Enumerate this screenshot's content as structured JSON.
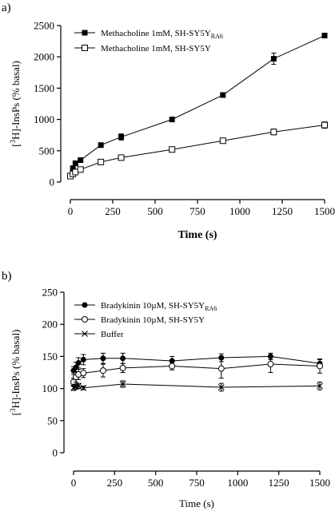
{
  "chart_data": [
    {
      "panel_label": "a)",
      "type": "line",
      "xlabel": "Time (s)",
      "ylabel_parts": {
        "pre": "[",
        "sup": "3",
        "post": "H]-InsPs (% basal)"
      },
      "xlim": [
        0,
        1500
      ],
      "ylim": [
        0,
        2500
      ],
      "xticks": [
        0,
        250,
        500,
        750,
        1000,
        1250,
        1500
      ],
      "yticks": [
        0,
        500,
        1000,
        1500,
        2000,
        2500
      ],
      "legend_position": "top-left",
      "series": [
        {
          "name": "Methacholine 1mM, SH-SY5Y",
          "name_sub": "RA6",
          "marker": "filled-square",
          "x": [
            0,
            15,
            30,
            60,
            180,
            300,
            600,
            900,
            1200,
            1500
          ],
          "y": [
            100,
            220,
            300,
            350,
            590,
            720,
            1000,
            1390,
            1970,
            2340
          ],
          "err": [
            15,
            25,
            25,
            25,
            30,
            50,
            30,
            30,
            90,
            30
          ]
        },
        {
          "name": "Methacholine 1mM, SH-SY5Y",
          "name_sub": "",
          "marker": "open-square",
          "x": [
            0,
            15,
            30,
            60,
            180,
            300,
            600,
            900,
            1200,
            1500
          ],
          "y": [
            95,
            130,
            160,
            200,
            320,
            390,
            520,
            660,
            800,
            910
          ],
          "err": [
            10,
            15,
            15,
            15,
            20,
            20,
            20,
            25,
            45,
            50
          ]
        }
      ]
    },
    {
      "panel_label": "b)",
      "type": "line",
      "xlabel": "Time (s)",
      "ylabel_parts": {
        "pre": "[",
        "sup": "3",
        "post": "H]-InsPs (% basal)"
      },
      "xlim": [
        0,
        1500
      ],
      "ylim": [
        0,
        250
      ],
      "xticks": [
        0,
        250,
        500,
        750,
        1000,
        1250,
        1500
      ],
      "yticks": [
        0,
        50,
        100,
        150,
        200,
        250
      ],
      "legend_position": "top-left",
      "series": [
        {
          "name": "Bradykinin 10µM, SH-SY5Y",
          "name_sub": "RA6",
          "marker": "filled-circle",
          "x": [
            0,
            15,
            30,
            60,
            180,
            300,
            600,
            900,
            1200,
            1500
          ],
          "y": [
            128,
            133,
            140,
            145,
            147,
            147,
            143,
            148,
            150,
            139
          ],
          "err": [
            6,
            8,
            8,
            8,
            8,
            8,
            7,
            6,
            5,
            6
          ]
        },
        {
          "name": "Bradykinin 10µM, SH-SY5Y",
          "name_sub": "",
          "marker": "open-circle",
          "x": [
            0,
            15,
            30,
            60,
            180,
            300,
            600,
            900,
            1200,
            1500
          ],
          "y": [
            110,
            118,
            122,
            124,
            128,
            132,
            135,
            131,
            138,
            135
          ],
          "err": [
            6,
            8,
            8,
            7,
            10,
            7,
            6,
            15,
            13,
            11
          ]
        },
        {
          "name": "Buffer",
          "name_sub": "",
          "marker": "cross",
          "x": [
            0,
            15,
            30,
            60,
            300,
            900,
            1500
          ],
          "y": [
            101,
            103,
            104,
            101,
            107,
            102,
            104
          ],
          "err": [
            4,
            4,
            4,
            3,
            5,
            6,
            6
          ]
        }
      ]
    }
  ]
}
